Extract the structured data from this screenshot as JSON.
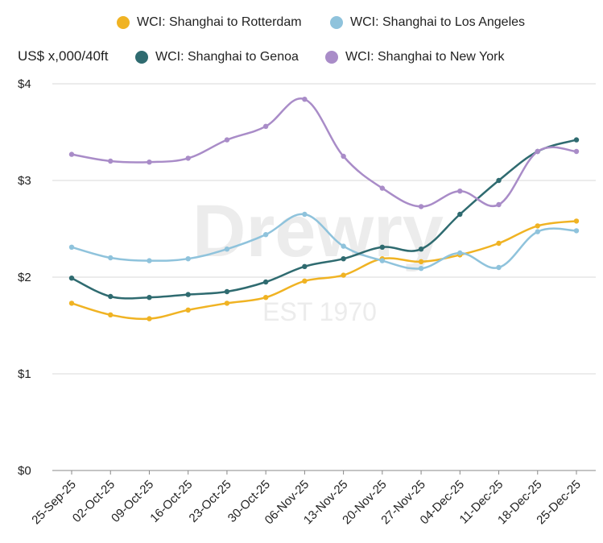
{
  "chart_data": {
    "type": "line",
    "ylabel": "US$ x,000/40ft",
    "ylim": [
      0,
      4
    ],
    "y_ticks": [
      "$0",
      "$1",
      "$2",
      "$3",
      "$4"
    ],
    "grid": "horizontal",
    "legend_position": "top",
    "categories": [
      "25-Sep-25",
      "02-Oct-25",
      "09-Oct-25",
      "16-Oct-25",
      "23-Oct-25",
      "30-Oct-25",
      "06-Nov-25",
      "13-Nov-25",
      "20-Nov-25",
      "27-Nov-25",
      "04-Dec-25",
      "11-Dec-25",
      "18-Dec-25",
      "25-Dec-25"
    ],
    "series": [
      {
        "name": "WCI: Shanghai to Rotterdam",
        "color": "#f0b323",
        "values": [
          1.73,
          1.61,
          1.57,
          1.66,
          1.73,
          1.79,
          1.96,
          2.02,
          2.19,
          2.16,
          2.23,
          2.35,
          2.53,
          2.58
        ]
      },
      {
        "name": "WCI: Shanghai to Los Angeles",
        "color": "#8fc3dc",
        "values": [
          2.31,
          2.2,
          2.17,
          2.19,
          2.29,
          2.44,
          2.65,
          2.32,
          2.17,
          2.09,
          2.25,
          2.1,
          2.47,
          2.48
        ]
      },
      {
        "name": "WCI: Shanghai to Genoa",
        "color": "#2f6b70",
        "values": [
          1.99,
          1.8,
          1.79,
          1.82,
          1.85,
          1.95,
          2.11,
          2.19,
          2.31,
          2.29,
          2.65,
          3.0,
          3.3,
          3.42
        ]
      },
      {
        "name": "WCI: Shanghai to New York",
        "color": "#a98cc8",
        "values": [
          3.27,
          3.2,
          3.19,
          3.23,
          3.42,
          3.56,
          3.84,
          3.25,
          2.92,
          2.73,
          2.89,
          2.75,
          3.3,
          3.3
        ]
      }
    ]
  },
  "watermark": {
    "brand": "Drewry",
    "est": "EST 1970"
  }
}
